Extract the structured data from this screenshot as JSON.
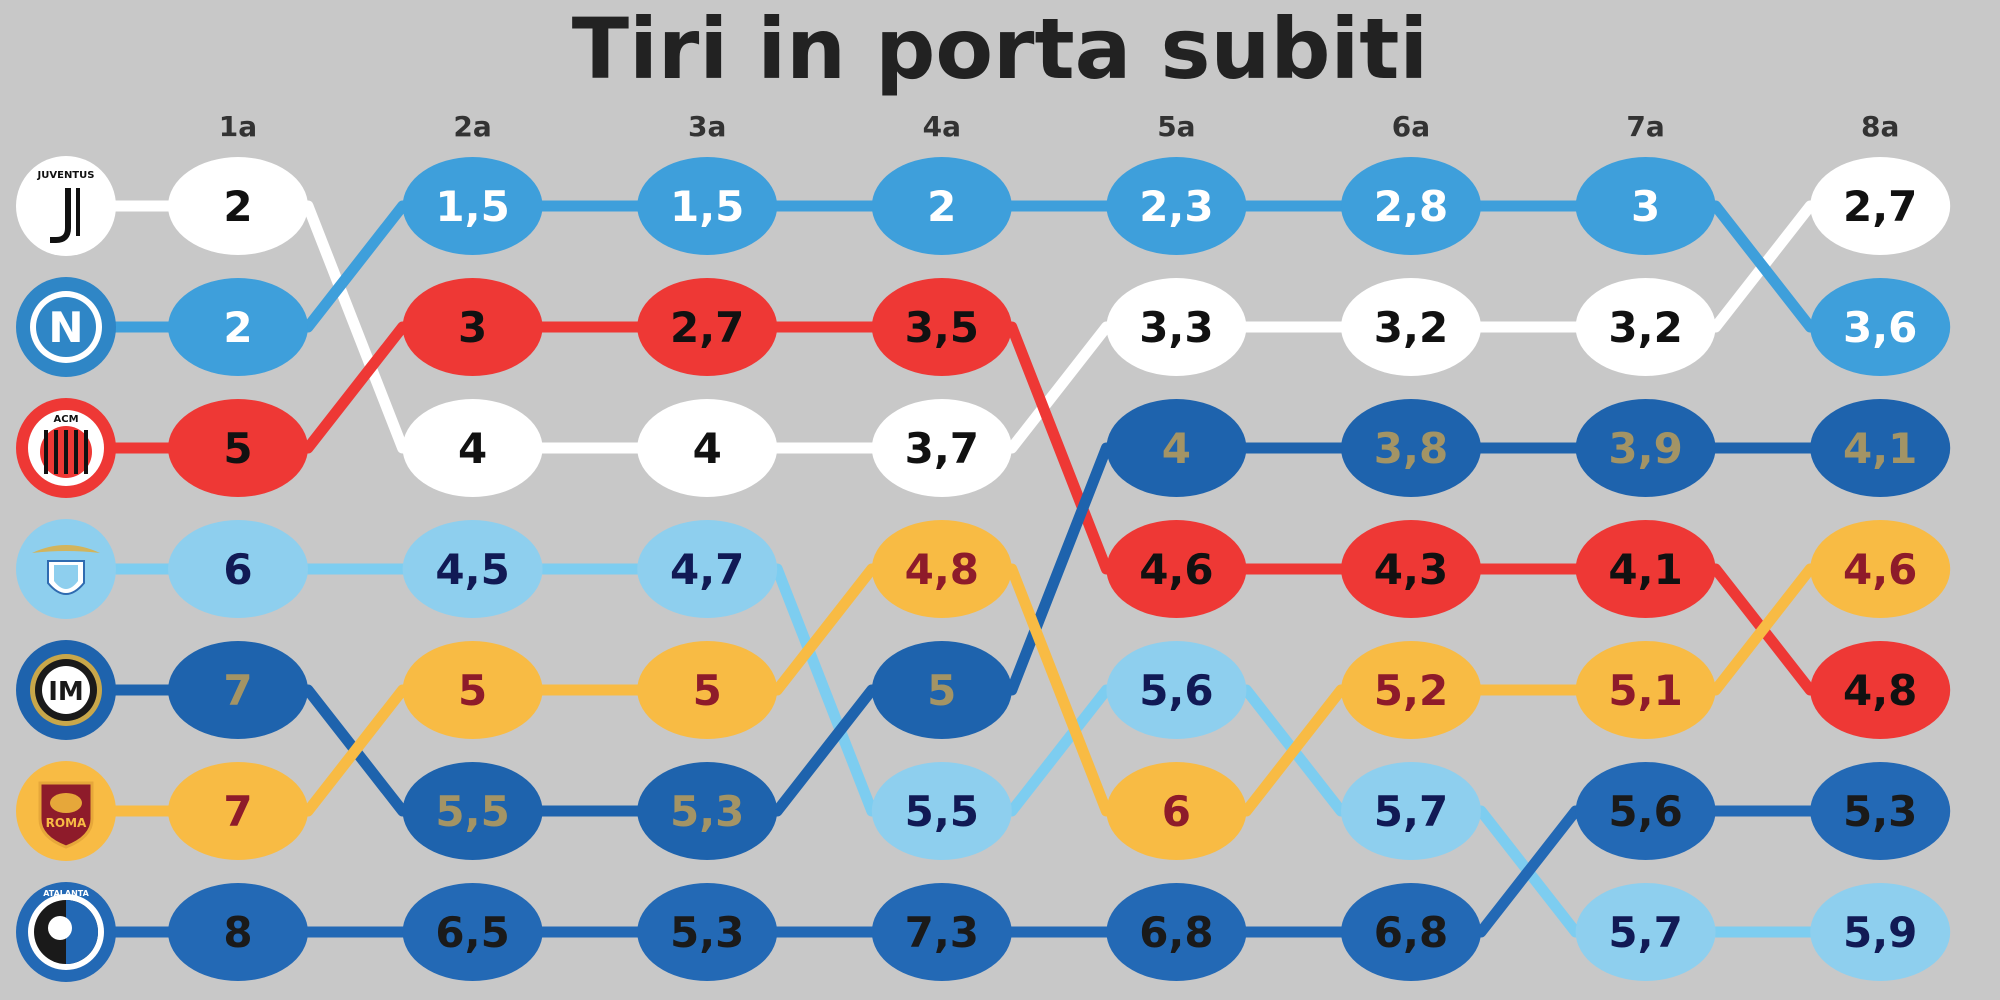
{
  "chart_data": {
    "type": "line",
    "title": "Tiri in porta subiti",
    "rounds": [
      "1a",
      "2a",
      "3a",
      "4a",
      "5a",
      "6a",
      "7a",
      "8a"
    ],
    "series": [
      {
        "team": "juventus",
        "fill": "#ffffff",
        "line": "#ffffff",
        "text": "#111111",
        "logo": "juventus-logo",
        "values": [
          "2",
          "4",
          "4",
          "3,7",
          "3,3",
          "3,2",
          "3,2",
          "2,7"
        ],
        "ranks": [
          1,
          3,
          3,
          3,
          2,
          2,
          2,
          1
        ]
      },
      {
        "team": "napoli",
        "fill": "#3e9fdb",
        "line": "#3e9fdb",
        "text": "#ffffff",
        "logo": "napoli-logo",
        "values": [
          "2",
          "1,5",
          "1,5",
          "2",
          "2,3",
          "2,8",
          "3",
          "3,6"
        ],
        "ranks": [
          2,
          1,
          1,
          1,
          1,
          1,
          1,
          2
        ]
      },
      {
        "team": "milan",
        "fill": "#ee3835",
        "line": "#ee3835",
        "text": "#111111",
        "logo": "milan-logo",
        "values": [
          "5",
          "3",
          "2,7",
          "3,5",
          "4,6",
          "4,3",
          "4,1",
          "4,8"
        ],
        "ranks": [
          3,
          2,
          2,
          2,
          4,
          4,
          4,
          5
        ]
      },
      {
        "team": "lazio",
        "fill": "#8ecfee",
        "line": "#7dcdf0",
        "text": "#111a55",
        "logo": "lazio-logo",
        "values": [
          "6",
          "4,5",
          "4,7",
          "5,5",
          "5,6",
          "5,7",
          "5,7",
          "5,9"
        ],
        "ranks": [
          4,
          4,
          4,
          6,
          5,
          6,
          7,
          7
        ]
      },
      {
        "team": "inter",
        "fill": "#1e63ad",
        "line": "#1e63ad",
        "text": "#a39465",
        "logo": "inter-logo",
        "values": [
          "7",
          "5,5",
          "5,3",
          "5",
          "4",
          "3,8",
          "3,9",
          "4,1"
        ],
        "ranks": [
          5,
          6,
          6,
          5,
          3,
          3,
          3,
          3
        ]
      },
      {
        "team": "roma",
        "fill": "#f8bb44",
        "line": "#f8bb44",
        "text": "#8e1b2a",
        "logo": "roma-logo",
        "values": [
          "7",
          "5",
          "5",
          "4,8",
          "6",
          "5,2",
          "5,1",
          "4,6"
        ],
        "ranks": [
          6,
          5,
          5,
          4,
          6,
          5,
          5,
          4
        ]
      },
      {
        "team": "atalanta",
        "fill": "#2369b5",
        "line": "#2369b5",
        "text": "#1a1a1a",
        "logo": "atalanta-logo",
        "values": [
          "8",
          "6,5",
          "5,3",
          "7,3",
          "6,8",
          "6,8",
          "5,6",
          "5,3"
        ],
        "ranks": [
          7,
          7,
          7,
          7,
          7,
          7,
          6,
          6
        ]
      }
    ],
    "logos": {
      "juventus": {
        "ring": "#ffffff",
        "inner": "#ffffff",
        "text": "JUVENTUS"
      },
      "napoli": {
        "ring": "#2f86c6",
        "inner": "#2f86c6",
        "text": "N"
      },
      "milan": {
        "ring": "#ee3835",
        "inner": "#ffffff",
        "text": "ACM"
      },
      "lazio": {
        "ring": "#8ecfee",
        "inner": "#8ecfee",
        "text": "S.S. LAZIO"
      },
      "inter": {
        "ring": "#1e63ad",
        "inner": "#1a1a1a",
        "text": "IM"
      },
      "roma": {
        "ring": "#f8bb44",
        "inner": "#8e1b2a",
        "text": "ROMA"
      },
      "atalanta": {
        "ring": "#2369b5",
        "inner": "#ffffff",
        "text": "ATALANTA"
      }
    }
  }
}
